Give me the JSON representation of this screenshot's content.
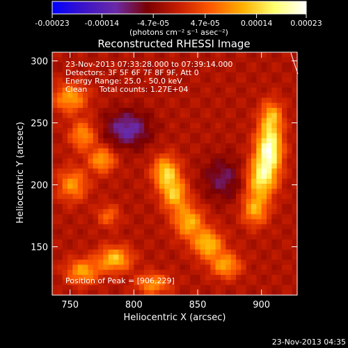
{
  "colorbar": {
    "ticks": [
      "-0.00023",
      "-0.00014",
      "-4.7e-05",
      "4.7e-05",
      "0.00014",
      "0.00023"
    ],
    "tick_values": [
      -0.00023,
      -0.00014,
      -4.7e-05,
      4.7e-05,
      0.00014,
      0.00023
    ],
    "range": [
      -0.00023,
      0.00023
    ],
    "units_text": "(photons cm⁻² s⁻¹ asec⁻²)",
    "stops": [
      "#0000ff",
      "#3c14c8",
      "#6a2aa6",
      "#7a0000",
      "#c81e00",
      "#ff5a00",
      "#ffb000",
      "#ffff70",
      "#ffffff"
    ]
  },
  "chart_data": {
    "type": "heatmap",
    "title": "Reconstructed RHESSI Image",
    "xlabel": "Heliocentric X (arcsec)",
    "ylabel": "Heliocentric Y (arcsec)",
    "xlim": [
      736,
      928
    ],
    "ylim": [
      111,
      307
    ],
    "x_ticks": [
      750,
      800,
      850,
      900
    ],
    "y_ticks": [
      150,
      200,
      250,
      300
    ],
    "annotations": [
      "23-Nov-2013 07:33:28.000 to 07:39:14.000",
      "Detectors: 3F 5F 6F 7F 8F 9F, Att 0",
      "Energy Range: 25.0 - 50.0 keV",
      "Clean     Total counts: 1.27E+04"
    ],
    "peak_text": "Position of Peak = [906,229]",
    "sources": [
      {
        "x": 906,
        "y": 229,
        "sx": 7,
        "sy": 13,
        "amp": 1.0
      },
      {
        "x": 900,
        "y": 205,
        "sx": 8,
        "sy": 11,
        "amp": 0.75
      },
      {
        "x": 908,
        "y": 255,
        "sx": 6,
        "sy": 9,
        "amp": 0.55
      },
      {
        "x": 895,
        "y": 180,
        "sx": 7,
        "sy": 9,
        "amp": 0.55
      },
      {
        "x": 825,
        "y": 210,
        "sx": 7,
        "sy": 9,
        "amp": 0.7
      },
      {
        "x": 832,
        "y": 192,
        "sx": 7,
        "sy": 9,
        "amp": 0.62
      },
      {
        "x": 843,
        "y": 170,
        "sx": 8,
        "sy": 9,
        "amp": 0.6
      },
      {
        "x": 858,
        "y": 152,
        "sx": 8,
        "sy": 8,
        "amp": 0.65
      },
      {
        "x": 872,
        "y": 135,
        "sx": 8,
        "sy": 7,
        "amp": 0.55
      },
      {
        "x": 785,
        "y": 140,
        "sx": 9,
        "sy": 7,
        "amp": 0.65
      },
      {
        "x": 760,
        "y": 130,
        "sx": 9,
        "sy": 7,
        "amp": 0.55
      },
      {
        "x": 815,
        "y": 120,
        "sx": 9,
        "sy": 6,
        "amp": 0.5
      },
      {
        "x": 750,
        "y": 270,
        "sx": 9,
        "sy": 8,
        "amp": 0.55
      },
      {
        "x": 760,
        "y": 240,
        "sx": 7,
        "sy": 8,
        "amp": 0.5
      },
      {
        "x": 775,
        "y": 220,
        "sx": 7,
        "sy": 7,
        "amp": 0.55
      },
      {
        "x": 752,
        "y": 200,
        "sx": 8,
        "sy": 9,
        "amp": 0.5
      },
      {
        "x": 780,
        "y": 175,
        "sx": 6,
        "sy": 6,
        "amp": 0.35
      },
      {
        "x": 795,
        "y": 245,
        "sx": 12,
        "sy": 10,
        "amp": -0.45
      },
      {
        "x": 870,
        "y": 205,
        "sx": 11,
        "sy": 12,
        "amp": -0.3
      }
    ]
  },
  "footer": {
    "timestamp": "23-Nov-2013 04:35"
  }
}
